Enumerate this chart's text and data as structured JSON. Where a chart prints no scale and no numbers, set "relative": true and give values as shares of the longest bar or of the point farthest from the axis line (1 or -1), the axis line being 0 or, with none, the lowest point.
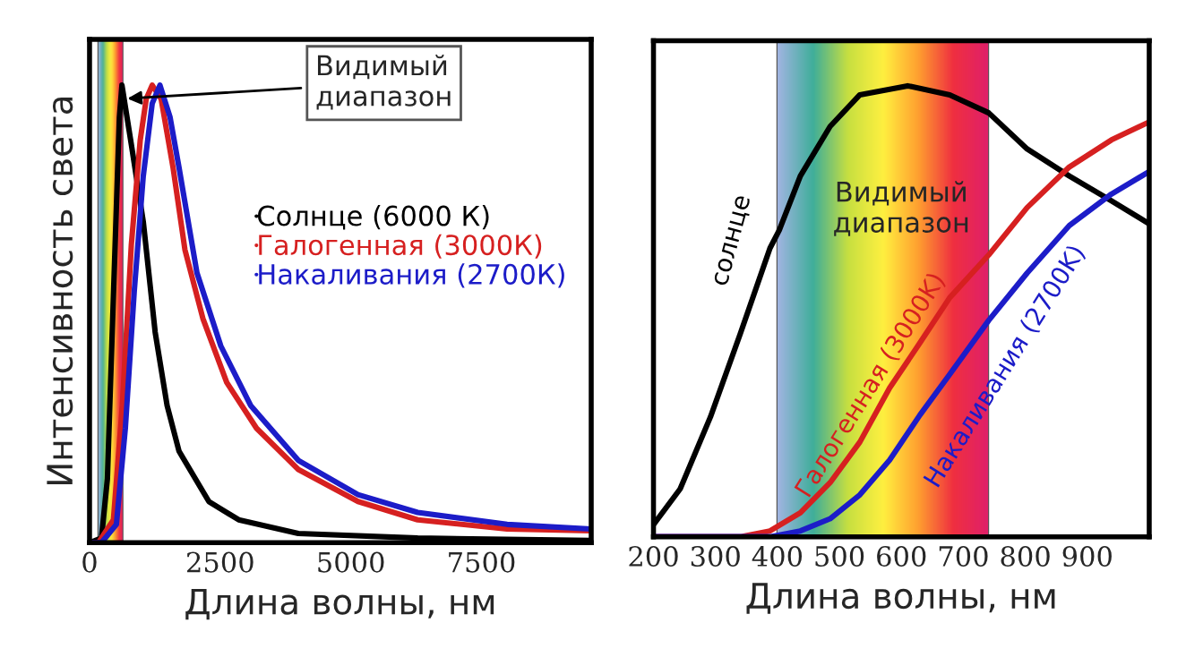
{
  "chart_data": [
    {
      "type": "line",
      "relative": true,
      "xlabel": "Длина волны, нм",
      "ylabel": "Интенсивность света",
      "xlim": [
        0,
        9600
      ],
      "xticks": [
        0,
        2500,
        5000,
        7500
      ],
      "legend": "right",
      "grid": false,
      "bands": [
        {
          "axis": "x",
          "from": 170,
          "to": 630
        }
      ],
      "annotations": [
        {
          "text": "Видимый\nдиапазон",
          "x": 630,
          "y": 0.97
        }
      ],
      "series": [
        {
          "name": "Солнце (6000 К)",
          "color": "#000000",
          "x": [
            0,
            228,
            342,
            457,
            571,
            620,
            800,
            1030,
            1256,
            1484,
            1712,
            2283,
            2854,
            3995,
            6279,
            9600
          ],
          "values": [
            0,
            0.01,
            0.14,
            0.54,
            0.93,
            1.0,
            0.87,
            0.7,
            0.46,
            0.3,
            0.2,
            0.09,
            0.05,
            0.02,
            0.01,
            0.005
          ]
        },
        {
          "name": "Галогенная (3000К)",
          "color": "#d62020",
          "x": [
            0,
            171,
            457,
            628,
            799,
            970,
            1085,
            1199,
            1370,
            1598,
            1826,
            2169,
            2626,
            3196,
            3995,
            5137,
            6279,
            7991,
            9600
          ],
          "values": [
            0,
            0,
            0.05,
            0.3,
            0.65,
            0.88,
            0.97,
            1.0,
            0.97,
            0.82,
            0.64,
            0.49,
            0.35,
            0.25,
            0.16,
            0.09,
            0.05,
            0.03,
            0.026
          ]
        },
        {
          "name": "Накаливания (2700К)",
          "color": "#1c1cc8",
          "x": [
            0,
            228,
            514,
            685,
            856,
            1027,
            1199,
            1347,
            1541,
            1712,
            2055,
            2512,
            3082,
            3995,
            5137,
            6279,
            7991,
            9600
          ],
          "values": [
            0,
            0,
            0.04,
            0.25,
            0.55,
            0.8,
            0.96,
            1.0,
            0.93,
            0.82,
            0.59,
            0.43,
            0.3,
            0.18,
            0.105,
            0.066,
            0.04,
            0.03
          ]
        }
      ]
    },
    {
      "type": "line",
      "relative": true,
      "xlabel": "Длина волны, нм",
      "xlim": [
        200,
        1000
      ],
      "xticks": [
        200,
        300,
        400,
        500,
        600,
        700,
        800,
        900
      ],
      "grid": false,
      "bands": [
        {
          "axis": "x",
          "from": 400,
          "to": 740
        }
      ],
      "annotations": [
        "Видимый\nдиапазон"
      ],
      "series": [
        {
          "name": "солнце",
          "color": "#000000",
          "x": [
            200,
            243,
            292,
            340,
            388,
            403,
            437,
            485,
            533,
            610,
            678,
            741,
            803,
            871,
            939,
            1000
          ],
          "values": [
            0.027,
            0.106,
            0.266,
            0.45,
            0.64,
            0.68,
            0.8,
            0.91,
            0.98,
            1.0,
            0.98,
            0.94,
            0.86,
            0.8,
            0.745,
            0.694
          ]
        },
        {
          "name": "Галогенная (3000K)",
          "color": "#d62020",
          "x": [
            200,
            340,
            388,
            437,
            485,
            533,
            581,
            630,
            678,
            741,
            803,
            871,
            939,
            1000
          ],
          "values": [
            0,
            0,
            0.013,
            0.053,
            0.12,
            0.21,
            0.33,
            0.43,
            0.53,
            0.625,
            0.73,
            0.82,
            0.88,
            0.92
          ]
        },
        {
          "name": "Накаливания (2700K)",
          "color": "#1c1cc8",
          "x": [
            200,
            388,
            437,
            485,
            533,
            581,
            630,
            678,
            741,
            803,
            871,
            939,
            1000
          ],
          "values": [
            0,
            0,
            0.013,
            0.04,
            0.093,
            0.17,
            0.27,
            0.36,
            0.48,
            0.585,
            0.69,
            0.76,
            0.81
          ]
        }
      ]
    }
  ]
}
